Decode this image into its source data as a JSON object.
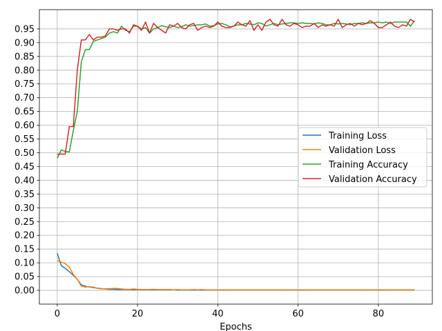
{
  "chart_data": {
    "type": "line",
    "xlabel": "Epochs",
    "ylabel": "",
    "title": "",
    "xlim": [
      -4.45,
      93.45
    ],
    "ylim": [
      -0.05,
      1.02
    ],
    "xticks": [
      0,
      20,
      40,
      60,
      80
    ],
    "yticks": [
      0.0,
      0.05,
      0.1,
      0.15,
      0.2,
      0.25,
      0.3,
      0.35,
      0.4,
      0.45,
      0.5,
      0.55,
      0.6,
      0.65,
      0.7,
      0.75,
      0.8,
      0.85,
      0.9,
      0.95
    ],
    "xtick_labels": [
      "0",
      "20",
      "40",
      "60",
      "80"
    ],
    "ytick_labels": [
      "0.00",
      "0.05",
      "0.10",
      "0.15",
      "0.20",
      "0.25",
      "0.30",
      "0.35",
      "0.40",
      "0.45",
      "0.50",
      "0.55",
      "0.60",
      "0.65",
      "0.70",
      "0.75",
      "0.80",
      "0.85",
      "0.90",
      "0.95"
    ],
    "grid": true,
    "legend_position": "center-right",
    "series": [
      {
        "name": "Training Loss",
        "color": "#1f77b4",
        "values": [
          0.135,
          0.09,
          0.08,
          0.068,
          0.055,
          0.04,
          0.02,
          0.015,
          0.012,
          0.01,
          0.008,
          0.006,
          0.005,
          0.004,
          0.004,
          0.003,
          0.003,
          0.003,
          0.003,
          0.002,
          0.003,
          0.002,
          0.002,
          0.002,
          0.002,
          0.002,
          0.002,
          0.002,
          0.002,
          0.002,
          0.001,
          0.001,
          0.001,
          0.001,
          0.001,
          0.001,
          0.001,
          0.001,
          0.001,
          0.001,
          0.001,
          0.001,
          0.001,
          0.001,
          0.001,
          0.001,
          0.001,
          0.001,
          0.001,
          0.001,
          0.001,
          0.001,
          0.001,
          0.001,
          0.001,
          0.001,
          0.001,
          0.001,
          0.001,
          0.001,
          0.001,
          0.001,
          0.001,
          0.001,
          0.001,
          0.001,
          0.001,
          0.001,
          0.001,
          0.001,
          0.001,
          0.001,
          0.001,
          0.001,
          0.001,
          0.001,
          0.001,
          0.001,
          0.001,
          0.001,
          0.001,
          0.001,
          0.001,
          0.001,
          0.001,
          0.001,
          0.001,
          0.001,
          0.001,
          0.001
        ]
      },
      {
        "name": "Validation Loss",
        "color": "#ff7f0e",
        "values": [
          0.108,
          0.103,
          0.097,
          0.085,
          0.058,
          0.04,
          0.015,
          0.012,
          0.013,
          0.012,
          0.007,
          0.005,
          0.006,
          0.006,
          0.007,
          0.007,
          0.005,
          0.004,
          0.004,
          0.005,
          0.004,
          0.003,
          0.003,
          0.003,
          0.004,
          0.003,
          0.003,
          0.003,
          0.003,
          0.002,
          0.003,
          0.002,
          0.002,
          0.002,
          0.003,
          0.002,
          0.003,
          0.002,
          0.002,
          0.002,
          0.002,
          0.002,
          0.002,
          0.002,
          0.002,
          0.002,
          0.002,
          0.002,
          0.002,
          0.002,
          0.002,
          0.002,
          0.002,
          0.002,
          0.002,
          0.002,
          0.002,
          0.002,
          0.002,
          0.002,
          0.002,
          0.002,
          0.002,
          0.002,
          0.002,
          0.002,
          0.002,
          0.002,
          0.002,
          0.002,
          0.002,
          0.002,
          0.002,
          0.002,
          0.002,
          0.002,
          0.002,
          0.002,
          0.002,
          0.002,
          0.002,
          0.002,
          0.002,
          0.002,
          0.002,
          0.002,
          0.002,
          0.002,
          0.002,
          0.002
        ]
      },
      {
        "name": "Training Accuracy",
        "color": "#2ca02c",
        "values": [
          0.48,
          0.51,
          0.505,
          0.503,
          0.58,
          0.65,
          0.83,
          0.875,
          0.875,
          0.905,
          0.91,
          0.915,
          0.92,
          0.935,
          0.94,
          0.935,
          0.96,
          0.945,
          0.94,
          0.96,
          0.96,
          0.95,
          0.955,
          0.935,
          0.95,
          0.955,
          0.962,
          0.958,
          0.955,
          0.96,
          0.955,
          0.958,
          0.965,
          0.96,
          0.962,
          0.965,
          0.965,
          0.968,
          0.96,
          0.962,
          0.968,
          0.97,
          0.965,
          0.958,
          0.96,
          0.965,
          0.965,
          0.97,
          0.968,
          0.965,
          0.972,
          0.97,
          0.96,
          0.965,
          0.97,
          0.965,
          0.968,
          0.97,
          0.972,
          0.972,
          0.97,
          0.972,
          0.97,
          0.97,
          0.968,
          0.972,
          0.97,
          0.965,
          0.965,
          0.97,
          0.968,
          0.97,
          0.968,
          0.965,
          0.97,
          0.97,
          0.972,
          0.97,
          0.972,
          0.972,
          0.975,
          0.972,
          0.975,
          0.97,
          0.975,
          0.975,
          0.975,
          0.975,
          0.96,
          0.98
        ]
      },
      {
        "name": "Validation Accuracy",
        "color": "#d62728",
        "values": [
          0.495,
          0.495,
          0.495,
          0.595,
          0.595,
          0.8,
          0.91,
          0.91,
          0.93,
          0.91,
          0.92,
          0.92,
          0.925,
          0.95,
          0.95,
          0.945,
          0.95,
          0.95,
          0.935,
          0.965,
          0.96,
          0.945,
          0.975,
          0.935,
          0.97,
          0.955,
          0.945,
          0.935,
          0.965,
          0.96,
          0.97,
          0.955,
          0.95,
          0.965,
          0.97,
          0.945,
          0.955,
          0.96,
          0.955,
          0.96,
          0.975,
          0.96,
          0.955,
          0.955,
          0.96,
          0.975,
          0.965,
          0.96,
          0.98,
          0.945,
          0.965,
          0.945,
          0.975,
          0.985,
          0.965,
          0.96,
          0.985,
          0.965,
          0.96,
          0.97,
          0.965,
          0.955,
          0.96,
          0.96,
          0.97,
          0.955,
          0.965,
          0.96,
          0.965,
          0.96,
          0.985,
          0.955,
          0.965,
          0.97,
          0.96,
          0.97,
          0.965,
          0.97,
          0.98,
          0.97,
          0.955,
          0.955,
          0.965,
          0.975,
          0.96,
          0.955,
          0.965,
          0.96,
          0.985,
          0.975
        ]
      }
    ]
  }
}
